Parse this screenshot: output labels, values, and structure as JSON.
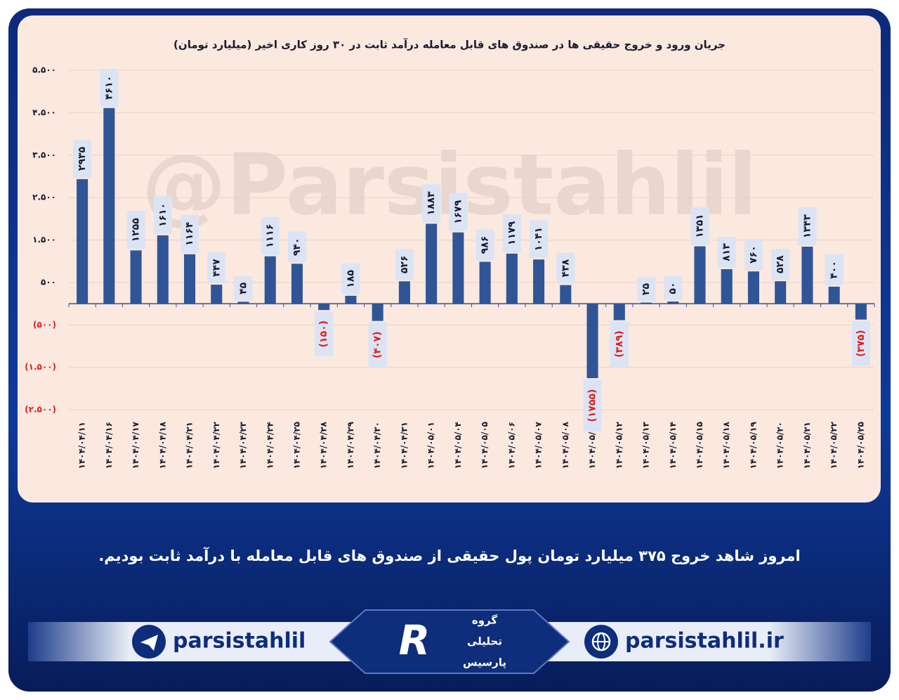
{
  "chart_data": {
    "type": "bar",
    "title": "جریان ورود و خروج حقیقی ها در صندوق های قابل معامله درآمد ثابت در ۳۰ روز کاری اخیر (میلیارد تومان)",
    "categories": [
      "۱۴۰۴/۰۴/۱۱",
      "۱۴۰۴/۰۴/۱۶",
      "۱۴۰۴/۰۴/۱۷",
      "۱۴۰۴/۰۴/۱۸",
      "۱۴۰۴/۰۴/۲۱",
      "۱۴۰۴/۰۴/۲۲",
      "۱۴۰۴/۰۴/۲۳",
      "۱۴۰۴/۰۴/۲۴",
      "۱۴۰۴/۰۴/۲۵",
      "۱۴۰۴/۰۴/۲۸",
      "۱۴۰۴/۰۴/۲۹",
      "۱۴۰۴/۰۴/۳۰",
      "۱۴۰۴/۰۴/۳۱",
      "۱۴۰۴/۰۵/۰۱",
      "۱۴۰۴/۰۵/۰۴",
      "۱۴۰۴/۰۵/۰۵",
      "۱۴۰۴/۰۵/۰۶",
      "۱۴۰۴/۰۵/۰۷",
      "۱۴۰۴/۰۵/۰۸",
      "۱۴۰۴/۰۵/۱۱",
      "۱۴۰۴/۰۵/۱۲",
      "۱۴۰۴/۰۵/۱۳",
      "۱۴۰۴/۰۵/۱۴",
      "۱۴۰۴/۰۵/۱۵",
      "۱۴۰۴/۰۵/۱۸",
      "۱۴۰۴/۰۵/۱۹",
      "۱۴۰۴/۰۵/۲۰",
      "۱۴۰۴/۰۵/۲۱",
      "۱۴۰۴/۰۵/۲۲",
      "۱۴۰۴/۰۵/۲۵"
    ],
    "values": [
      2935,
      4610,
      1255,
      1610,
      1164,
      447,
      45,
      1116,
      940,
      -150,
      185,
      -407,
      526,
      1883,
      1679,
      986,
      1179,
      1041,
      438,
      -1755,
      -389,
      25,
      50,
      1351,
      813,
      760,
      528,
      1343,
      400,
      -375
    ],
    "value_labels": [
      "۲۹۳۵",
      "۴۶۱۰",
      "۱۲۵۵",
      "۱۶۱۰",
      "۱۱۶۴",
      "۴۴۷",
      "۴۵",
      "۱۱۱۶",
      "۹۴۰",
      "(۱۵۰)",
      "۱۸۵",
      "(۴۰۷)",
      "۵۲۶",
      "۱۸۸۳",
      "۱۶۷۹",
      "۹۸۶",
      "۱۱۷۹",
      "۱۰۴۱",
      "۴۳۸",
      "(۱۷۵۵)",
      "(۳۸۹)",
      "۲۵",
      "۵۰",
      "۱۳۵۱",
      "۸۱۳",
      "۷۶۰",
      "۵۲۸",
      "۱۳۴۳",
      "۴۰۰",
      "(۳۷۵)"
    ],
    "color": "#2f5597",
    "negative_label_color": "#e0201c",
    "ylim": [
      -2500,
      5500
    ],
    "yticks": [
      {
        "value": -2500,
        "label": "(۲.۵۰۰)"
      },
      {
        "value": -1500,
        "label": "(۱.۵۰۰)"
      },
      {
        "value": -500,
        "label": "(۵۰۰)"
      },
      {
        "value": 500,
        "label": "۵۰۰"
      },
      {
        "value": 1500,
        "label": "۱.۵۰۰"
      },
      {
        "value": 2500,
        "label": "۲.۵۰۰"
      },
      {
        "value": 3500,
        "label": "۳.۵۰۰"
      },
      {
        "value": 4500,
        "label": "۴.۵۰۰"
      },
      {
        "value": 5500,
        "label": "۵.۵۰۰"
      }
    ],
    "grid": true
  },
  "watermark": "@Parsistahlil",
  "footer": {
    "text": "امروز شاهد خروج ۳۷۵ میلیارد تومان پول حقیقی از صندوق های قابل معامله با درآمد ثابت بودیم.",
    "telegram": "parsistahlil",
    "website": "parsistahlil.ir",
    "logo": [
      "گروه",
      "تحلیلی",
      "پارسیس"
    ]
  }
}
